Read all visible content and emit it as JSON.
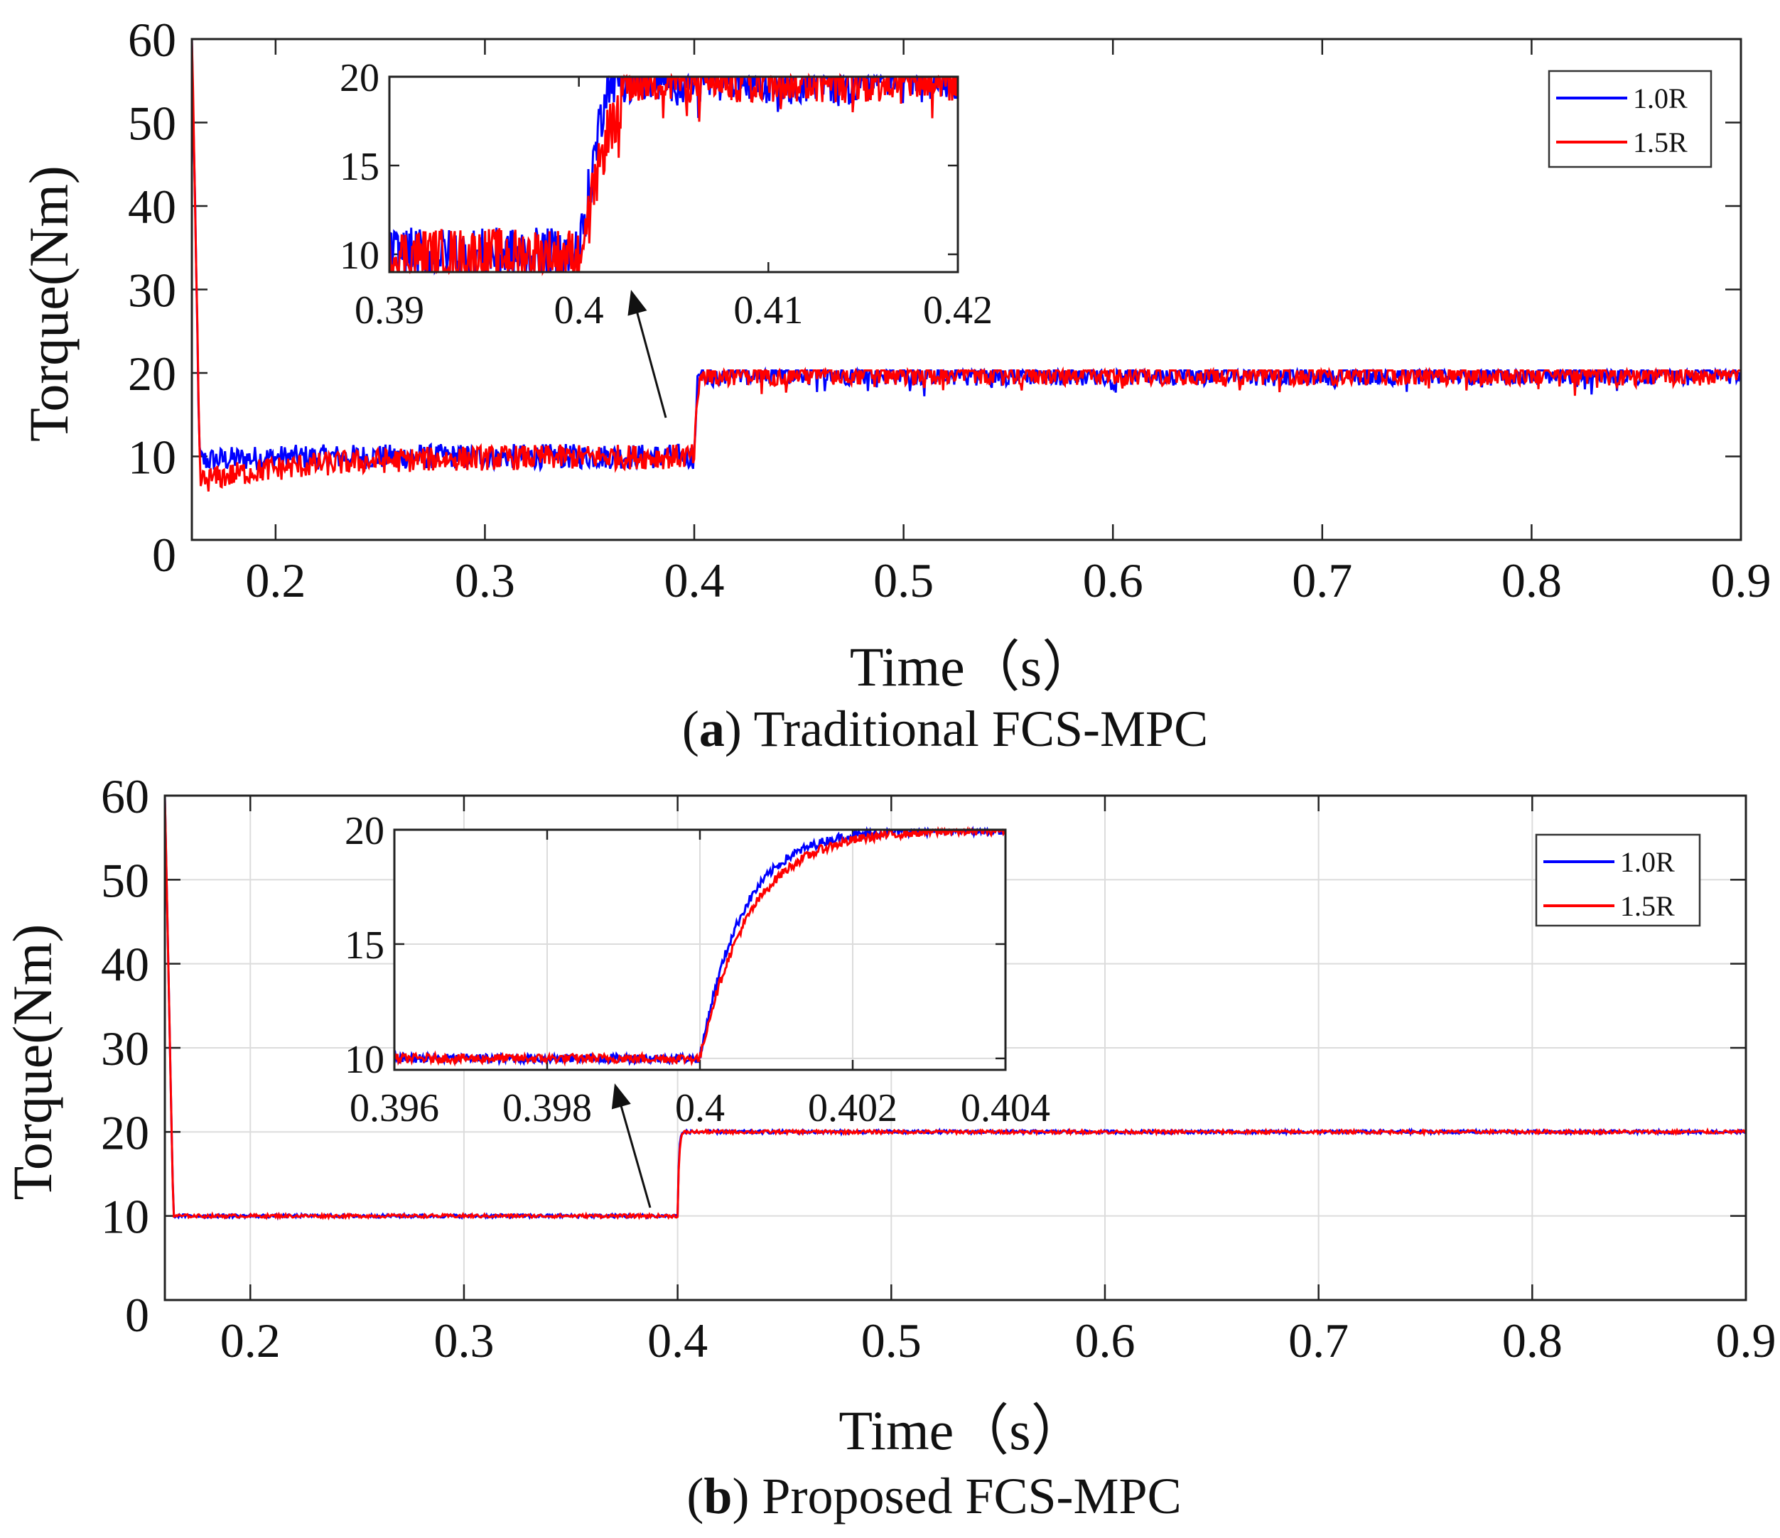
{
  "chart_data": [
    {
      "type": "line",
      "panel_label": "a",
      "caption": "Traditional FCS-MPC",
      "xlabel": "Time（s）",
      "ylabel": "Torque(Nm)",
      "xlim": [
        0.16,
        0.9
      ],
      "ylim": [
        0,
        60
      ],
      "xticks": [
        "0.2",
        "0.3",
        "0.4",
        "0.5",
        "0.6",
        "0.7",
        "0.8",
        "0.9"
      ],
      "yticks": [
        "0",
        "10",
        "20",
        "30",
        "40",
        "50",
        "60"
      ],
      "grid": false,
      "legend_position": "top-right",
      "series": [
        {
          "name": "1.0R",
          "color": "#0000ff",
          "start_value": 60,
          "low_value": 10,
          "high_value": 20,
          "step_time": 0.4,
          "ripple": 1.5
        },
        {
          "name": "1.5R",
          "color": "#ff0000",
          "start_value": 60,
          "low_value": 10,
          "high_value": 20,
          "step_time": 0.4,
          "ripple": 1.5
        }
      ],
      "inset": {
        "xlim": [
          0.39,
          0.42
        ],
        "ylim": [
          9,
          20
        ],
        "xticks": [
          "0.39",
          "0.4",
          "0.41",
          "0.42"
        ],
        "yticks": [
          "10",
          "15",
          "20"
        ],
        "grid": false
      }
    },
    {
      "type": "line",
      "panel_label": "b",
      "caption": "Proposed FCS-MPC",
      "xlabel": "Time（s）",
      "ylabel": "Torque(Nm)",
      "xlim": [
        0.16,
        0.9
      ],
      "ylim": [
        0,
        60
      ],
      "xticks": [
        "0.2",
        "0.3",
        "0.4",
        "0.5",
        "0.6",
        "0.7",
        "0.8",
        "0.9"
      ],
      "yticks": [
        "0",
        "10",
        "20",
        "30",
        "40",
        "50",
        "60"
      ],
      "grid": true,
      "legend_position": "top-right",
      "series": [
        {
          "name": "1.0R",
          "color": "#0000ff",
          "start_value": 60,
          "low_value": 10,
          "high_value": 20,
          "step_time": 0.4,
          "ripple": 0.2
        },
        {
          "name": "1.5R",
          "color": "#ff0000",
          "start_value": 60,
          "low_value": 10,
          "high_value": 20,
          "step_time": 0.4,
          "ripple": 0.2
        }
      ],
      "inset": {
        "xlim": [
          0.396,
          0.404
        ],
        "ylim": [
          9.5,
          20
        ],
        "xticks": [
          "0.396",
          "0.398",
          "0.4",
          "0.402",
          "0.404"
        ],
        "yticks": [
          "10",
          "15",
          "20"
        ],
        "grid": true
      }
    }
  ]
}
